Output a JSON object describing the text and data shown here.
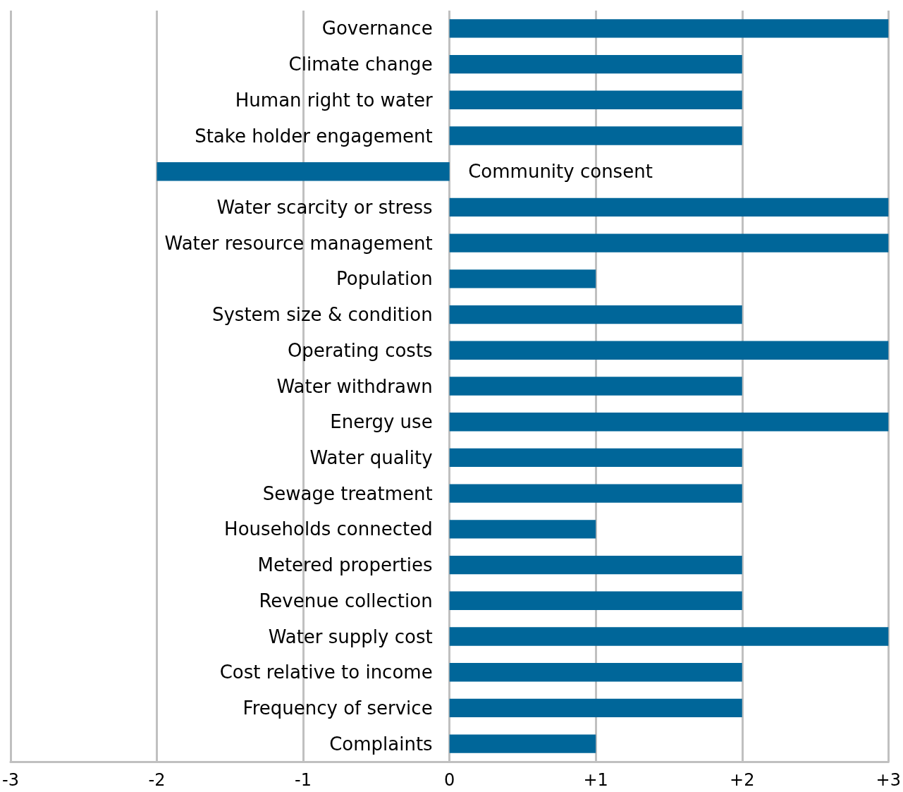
{
  "chart_data": {
    "type": "bar",
    "orientation": "horizontal",
    "categories": [
      "Governance",
      "Climate change",
      "Human right to water",
      "Stake holder engagement",
      "Community consent",
      "Water scarcity or stress",
      "Water resource management",
      "Population",
      "System size & condition",
      "Operating costs",
      "Water withdrawn",
      "Energy use",
      "Water quality",
      "Sewage treatment",
      "Households connected",
      "Metered properties",
      "Revenue collection",
      "Water supply cost",
      "Cost relative to income",
      "Frequency of service",
      "Complaints"
    ],
    "values": [
      3,
      2,
      2,
      2,
      -2,
      3,
      3,
      1,
      2,
      3,
      2,
      3,
      2,
      2,
      1,
      2,
      2,
      3,
      2,
      2,
      1
    ],
    "color": "#006699",
    "xlim": [
      -3,
      3
    ],
    "xticks": [
      -3,
      -2,
      -1,
      0,
      {
        "value": 1,
        "label": "+1"
      },
      {
        "value": 2,
        "label": "+2"
      },
      {
        "value": 3,
        "label": "+3"
      }
    ],
    "grid": "x"
  }
}
